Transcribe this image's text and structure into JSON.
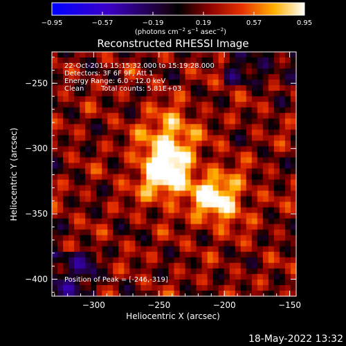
{
  "chart_data": {
    "type": "heatmap",
    "title": "Reconstructed RHESSI Image",
    "xlabel": "Heliocentric X (arcsec)",
    "ylabel": "Heliocentric Y (arcsec)",
    "xlim": [
      -332,
      -145
    ],
    "ylim": [
      -413,
      -226
    ],
    "xticks": [
      -300,
      -250,
      -200,
      -150
    ],
    "yticks": [
      -250,
      -300,
      -350,
      -400
    ],
    "xtick_labels": [
      "−300",
      "−250",
      "−200",
      "−150"
    ],
    "ytick_labels": [
      "−250",
      "−300",
      "−350",
      "−400"
    ],
    "colorbar": {
      "min": -0.95,
      "max": 0.95,
      "ticks": [
        -0.95,
        -0.57,
        -0.19,
        0.19,
        0.57,
        0.95
      ],
      "tick_labels": [
        "−0.95",
        "−0.57",
        "−0.19",
        "0.19",
        "0.57",
        "0.95"
      ],
      "unit_parts": [
        "(photons cm",
        "−2",
        " s",
        "−1",
        " asec",
        "−2",
        ")"
      ]
    },
    "annotations": [
      "22-Oct-2014 15:15:32.000 to 15:19:28.000",
      "Detectors: 3F 6F 9F, Att 1",
      "Energy Range: 6.0 - 12.0 keV",
      "Clean",
      "Total counts: 5.81E+03"
    ],
    "peak_label": "Position of Peak = [-246,-319]",
    "peaks": [
      {
        "x": -246,
        "y": -319,
        "value": 0.95
      },
      {
        "x": -205,
        "y": -338,
        "value": 0.8
      },
      {
        "x": -242,
        "y": -290,
        "value": 0.6
      }
    ]
  },
  "footer": {
    "timestamp": "18-May-2022 13:32"
  }
}
